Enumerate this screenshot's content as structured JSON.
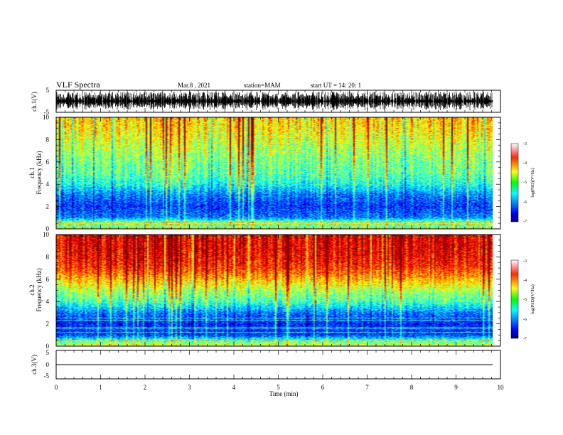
{
  "header": {
    "title": "VLF Spectra",
    "date": "Mar.8 , 2021",
    "station": "station=MAM",
    "start_ut": "start UT = 14: 20: 1"
  },
  "chart_data": [
    {
      "type": "line",
      "name": "ch1-waveform",
      "ylabel": "ch.1(V)",
      "ylim": [
        -5,
        5
      ],
      "yticks": [
        "5",
        "-5"
      ],
      "xlim": [
        0,
        10
      ],
      "description_values": {
        "mean": 0,
        "amplitude_v": 4.5,
        "impulse_density": "high"
      }
    },
    {
      "type": "heatmap",
      "name": "ch1-spectrogram",
      "ylabel": "ch.1\nFrequency (kHz)",
      "ylabel_lines": [
        "ch.1",
        "Frequency (kHz)"
      ],
      "ylim": [
        0,
        10
      ],
      "yticks": [
        "0",
        "2",
        "4",
        "6",
        "8",
        "10"
      ],
      "xlim": [
        0,
        9.8
      ],
      "colorbar": {
        "label": "log(PSD)(V²/Hz)",
        "ticks": [
          "-3",
          "-4",
          "-5",
          "-6",
          "-7"
        ],
        "range": [
          -7,
          -3
        ],
        "colormap": "jet"
      },
      "profile_log_psd": [
        {
          "khz": 0.0,
          "v": -5.2
        },
        {
          "khz": 0.5,
          "v": -4.9
        },
        {
          "khz": 1.0,
          "v": -6.0
        },
        {
          "khz": 2.0,
          "v": -6.3
        },
        {
          "khz": 3.0,
          "v": -6.0
        },
        {
          "khz": 4.0,
          "v": -5.4
        },
        {
          "khz": 5.0,
          "v": -5.1
        },
        {
          "khz": 6.0,
          "v": -5.0
        },
        {
          "khz": 7.0,
          "v": -4.8
        },
        {
          "khz": 8.0,
          "v": -4.6
        },
        {
          "khz": 9.0,
          "v": -4.4
        },
        {
          "khz": 10.0,
          "v": -4.3
        }
      ]
    },
    {
      "type": "heatmap",
      "name": "ch2-spectrogram",
      "ylabel": "ch.2\nFrequency (kHz)",
      "ylabel_lines": [
        "ch.2",
        "Frequency (kHz)"
      ],
      "ylim": [
        0,
        10
      ],
      "yticks": [
        "0",
        "2",
        "4",
        "6",
        "8",
        "10"
      ],
      "xlim": [
        0,
        9.8
      ],
      "colorbar": {
        "label": "log(PSD)(V²/Hz)",
        "ticks": [
          "-3",
          "-4",
          "-5",
          "-6",
          "-7"
        ],
        "range": [
          -7,
          -3
        ],
        "colormap": "jet"
      },
      "profile_log_psd": [
        {
          "khz": 0.0,
          "v": -4.6
        },
        {
          "khz": 0.5,
          "v": -5.3
        },
        {
          "khz": 1.0,
          "v": -6.3
        },
        {
          "khz": 2.0,
          "v": -6.4
        },
        {
          "khz": 3.0,
          "v": -6.0
        },
        {
          "khz": 4.0,
          "v": -5.2
        },
        {
          "khz": 5.0,
          "v": -4.8
        },
        {
          "khz": 6.0,
          "v": -4.2
        },
        {
          "khz": 7.0,
          "v": -3.7
        },
        {
          "khz": 8.0,
          "v": -3.5
        },
        {
          "khz": 9.0,
          "v": -3.4
        },
        {
          "khz": 10.0,
          "v": -3.4
        }
      ]
    },
    {
      "type": "line",
      "name": "ch3-waveform",
      "ylabel": "ch.3(V)",
      "ylim": [
        -5,
        5
      ],
      "yticks": [
        "5",
        "0",
        "-5"
      ],
      "xlim": [
        0,
        10
      ],
      "values_flat": 0
    }
  ],
  "xaxis": {
    "label": "Time (min)",
    "range": [
      0,
      10
    ],
    "ticks": [
      "0",
      "1",
      "2",
      "3",
      "4",
      "5",
      "6",
      "7",
      "8",
      "9",
      "10"
    ]
  }
}
